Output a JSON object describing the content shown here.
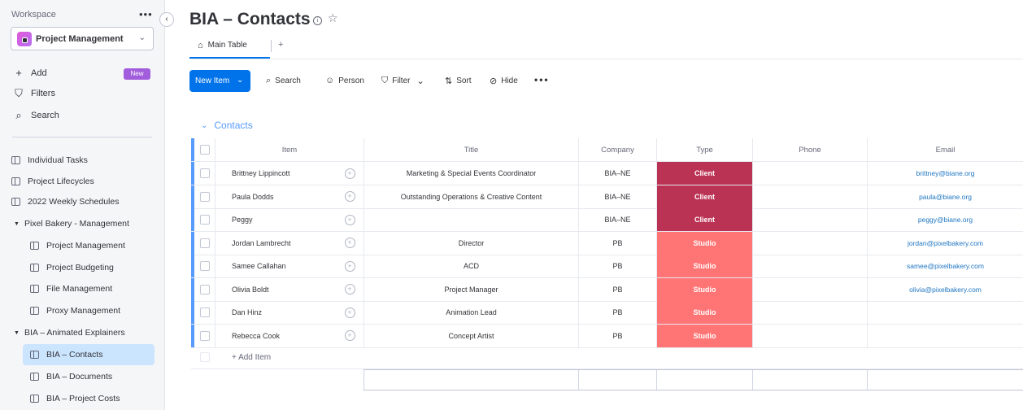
{
  "sidebar": {
    "workspace_label": "Workspace",
    "more_icon": "•••",
    "collapse_icon": "‹",
    "workspace_name": "Project Management",
    "actions": [
      {
        "icon": "+",
        "label": "Add"
      },
      {
        "icon": "⛉",
        "label": "Filters"
      },
      {
        "icon": "⌕",
        "label": "Search"
      }
    ],
    "new_badge": "New",
    "items": [
      {
        "label": "Individual Tasks",
        "kind": "board"
      },
      {
        "label": "Project Lifecycles",
        "kind": "board"
      },
      {
        "label": "2022 Weekly Schedules",
        "kind": "board"
      },
      {
        "label": "Pixel Bakery - Management",
        "kind": "folder"
      },
      {
        "label": "Project Management",
        "kind": "board",
        "indent": true
      },
      {
        "label": "Project Budgeting",
        "kind": "board-locked",
        "indent": true
      },
      {
        "label": "File Management",
        "kind": "board",
        "indent": true
      },
      {
        "label": "Proxy Management",
        "kind": "board",
        "indent": true
      },
      {
        "label": "BIA – Animated Explainers",
        "kind": "folder"
      },
      {
        "label": "BIA – Contacts",
        "kind": "board",
        "indent": true,
        "active": true
      },
      {
        "label": "BIA – Documents",
        "kind": "board-shared",
        "indent": true
      },
      {
        "label": "BIA – Project Costs",
        "kind": "board",
        "indent": true
      }
    ]
  },
  "header": {
    "title": "BIA – Contacts",
    "main_tab": "Main Table",
    "add_tab": "+"
  },
  "toolbar": {
    "new_item": "New Item",
    "search": "Search",
    "person": "Person",
    "filter": "Filter",
    "sort": "Sort",
    "hide": "Hide",
    "more": "•••"
  },
  "group": {
    "title": "Contacts",
    "color": "#579bfc"
  },
  "table": {
    "columns": [
      "Item",
      "Title",
      "Company",
      "Type",
      "Phone",
      "Email"
    ],
    "rows": [
      {
        "item": "Brittney Lippincott",
        "title": "Marketing & Special Events Coordinator",
        "company": "BIA–NE",
        "type": "Client",
        "phone": "",
        "email": "brittney@biane.org"
      },
      {
        "item": "Paula Dodds",
        "title": "Outstanding Operations & Creative Content",
        "company": "BIA–NE",
        "type": "Client",
        "phone": "",
        "email": "paula@biane.org"
      },
      {
        "item": "Peggy",
        "title": "",
        "company": "BIA–NE",
        "type": "Client",
        "phone": "",
        "email": "peggy@biane.org"
      },
      {
        "item": "Jordan Lambrecht",
        "title": "Director",
        "company": "PB",
        "type": "Studio",
        "phone": "",
        "email": "jordan@pixelbakery.com"
      },
      {
        "item": "Samee Callahan",
        "title": "ACD",
        "company": "PB",
        "type": "Studio",
        "phone": "",
        "email": "samee@pixelbakery.com"
      },
      {
        "item": "Olivia Boldt",
        "title": "Project Manager",
        "company": "PB",
        "type": "Studio",
        "phone": "",
        "email": "olivia@pixelbakery.com"
      },
      {
        "item": "Dan Hinz",
        "title": "Animation Lead",
        "company": "PB",
        "type": "Studio",
        "phone": "",
        "email": ""
      },
      {
        "item": "Rebecca Cook",
        "title": "Concept Artist",
        "company": "PB",
        "type": "Studio",
        "phone": "",
        "email": ""
      }
    ],
    "add_item": "+ Add Item",
    "type_colors": {
      "Client": "#bb3354",
      "Studio": "#ff7575"
    }
  }
}
